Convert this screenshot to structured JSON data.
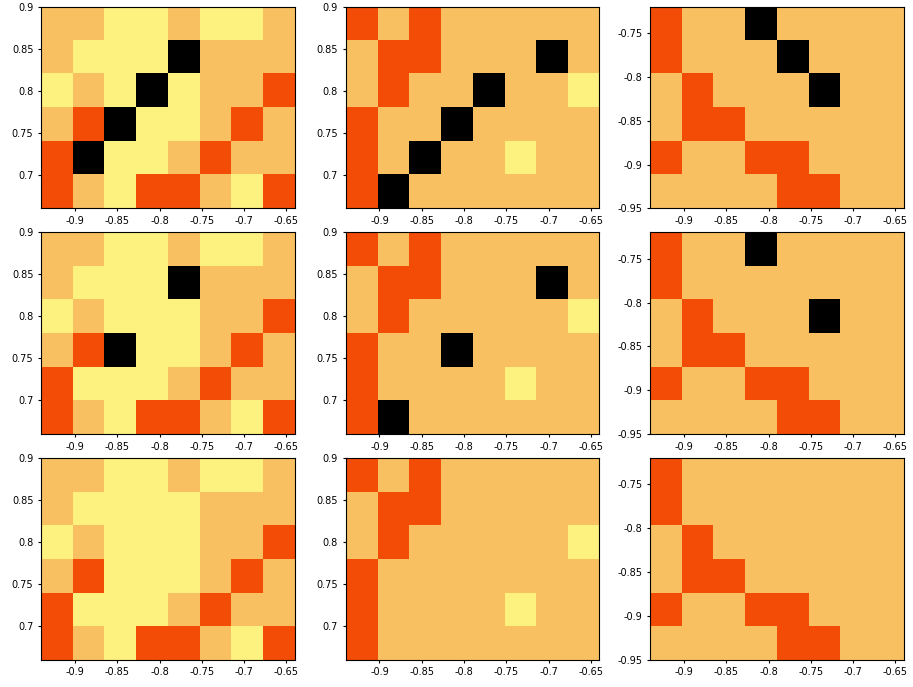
{
  "chart_data": [
    {
      "type": "heatmap",
      "xlim": [
        -0.94,
        -0.64
      ],
      "ylim": [
        0.66,
        0.9
      ],
      "xticks": [
        -0.9,
        -0.85,
        -0.8,
        -0.75,
        -0.7,
        -0.65
      ],
      "yticks": [
        0.7,
        0.75,
        0.8,
        0.85,
        0.9
      ],
      "colors": [
        "#fdf17f",
        "#f8c060",
        "#f24c06",
        "#000000"
      ],
      "cells": [
        [
          1,
          1,
          0,
          0,
          1,
          0,
          0,
          1
        ],
        [
          1,
          0,
          0,
          0,
          3,
          1,
          1,
          1
        ],
        [
          0,
          1,
          0,
          3,
          0,
          1,
          1,
          2
        ],
        [
          1,
          2,
          3,
          0,
          0,
          1,
          2,
          1
        ],
        [
          2,
          3,
          0,
          0,
          1,
          2,
          1,
          1
        ],
        [
          2,
          1,
          0,
          2,
          2,
          1,
          0,
          2
        ]
      ]
    },
    {
      "type": "heatmap",
      "xlim": [
        -0.94,
        -0.64
      ],
      "ylim": [
        0.66,
        0.9
      ],
      "xticks": [
        -0.9,
        -0.85,
        -0.8,
        -0.75,
        -0.7,
        -0.65
      ],
      "yticks": [
        0.7,
        0.75,
        0.8,
        0.85,
        0.9
      ],
      "colors": [
        "#fdf17f",
        "#f8c060",
        "#f24c06",
        "#000000"
      ],
      "cells": [
        [
          2,
          1,
          2,
          1,
          1,
          1,
          1,
          1
        ],
        [
          1,
          2,
          2,
          1,
          1,
          1,
          3,
          1
        ],
        [
          1,
          2,
          1,
          1,
          3,
          1,
          1,
          0
        ],
        [
          2,
          1,
          1,
          3,
          1,
          1,
          1,
          1
        ],
        [
          2,
          1,
          3,
          1,
          1,
          0,
          1,
          1
        ],
        [
          2,
          3,
          1,
          1,
          1,
          1,
          1,
          1
        ]
      ]
    },
    {
      "type": "heatmap",
      "xlim": [
        -0.94,
        -0.64
      ],
      "ylim": [
        -0.95,
        -0.72
      ],
      "xticks": [
        -0.9,
        -0.85,
        -0.8,
        -0.75,
        -0.7,
        -0.65
      ],
      "yticks": [
        -0.95,
        -0.9,
        -0.85,
        -0.8,
        -0.75
      ],
      "colors": [
        "#fdf17f",
        "#f8c060",
        "#f24c06",
        "#000000"
      ],
      "cells": [
        [
          2,
          1,
          1,
          3,
          1,
          1,
          1,
          1
        ],
        [
          2,
          1,
          1,
          1,
          3,
          1,
          1,
          1
        ],
        [
          1,
          2,
          1,
          1,
          1,
          3,
          1,
          1
        ],
        [
          1,
          2,
          2,
          1,
          1,
          1,
          1,
          1
        ],
        [
          2,
          1,
          1,
          2,
          2,
          1,
          1,
          1
        ],
        [
          1,
          1,
          1,
          1,
          2,
          2,
          1,
          1
        ]
      ]
    },
    {
      "type": "heatmap",
      "xlim": [
        -0.94,
        -0.64
      ],
      "ylim": [
        0.66,
        0.9
      ],
      "xticks": [
        -0.9,
        -0.85,
        -0.8,
        -0.75,
        -0.7,
        -0.65
      ],
      "yticks": [
        0.7,
        0.75,
        0.8,
        0.85,
        0.9
      ],
      "colors": [
        "#fdf17f",
        "#f8c060",
        "#f24c06",
        "#000000"
      ],
      "cells": [
        [
          1,
          1,
          0,
          0,
          1,
          0,
          0,
          1
        ],
        [
          1,
          0,
          0,
          0,
          3,
          1,
          1,
          1
        ],
        [
          0,
          1,
          0,
          0,
          0,
          1,
          1,
          2
        ],
        [
          1,
          2,
          3,
          0,
          0,
          1,
          2,
          1
        ],
        [
          2,
          0,
          0,
          0,
          1,
          2,
          1,
          1
        ],
        [
          2,
          1,
          0,
          2,
          2,
          1,
          0,
          2
        ]
      ]
    },
    {
      "type": "heatmap",
      "xlim": [
        -0.94,
        -0.64
      ],
      "ylim": [
        0.66,
        0.9
      ],
      "xticks": [
        -0.9,
        -0.85,
        -0.8,
        -0.75,
        -0.7,
        -0.65
      ],
      "yticks": [
        0.7,
        0.75,
        0.8,
        0.85,
        0.9
      ],
      "colors": [
        "#fdf17f",
        "#f8c060",
        "#f24c06",
        "#000000"
      ],
      "cells": [
        [
          2,
          1,
          2,
          1,
          1,
          1,
          1,
          1
        ],
        [
          1,
          2,
          2,
          1,
          1,
          1,
          3,
          1
        ],
        [
          1,
          2,
          1,
          1,
          1,
          1,
          1,
          0
        ],
        [
          2,
          1,
          1,
          3,
          1,
          1,
          1,
          1
        ],
        [
          2,
          1,
          1,
          1,
          1,
          0,
          1,
          1
        ],
        [
          2,
          3,
          1,
          1,
          1,
          1,
          1,
          1
        ]
      ]
    },
    {
      "type": "heatmap",
      "xlim": [
        -0.94,
        -0.64
      ],
      "ylim": [
        -0.95,
        -0.72
      ],
      "xticks": [
        -0.9,
        -0.85,
        -0.8,
        -0.75,
        -0.7,
        -0.65
      ],
      "yticks": [
        -0.95,
        -0.9,
        -0.85,
        -0.8,
        -0.75
      ],
      "colors": [
        "#fdf17f",
        "#f8c060",
        "#f24c06",
        "#000000"
      ],
      "cells": [
        [
          2,
          1,
          1,
          3,
          1,
          1,
          1,
          1
        ],
        [
          2,
          1,
          1,
          1,
          1,
          1,
          1,
          1
        ],
        [
          1,
          2,
          1,
          1,
          1,
          3,
          1,
          1
        ],
        [
          1,
          2,
          2,
          1,
          1,
          1,
          1,
          1
        ],
        [
          2,
          1,
          1,
          2,
          2,
          1,
          1,
          1
        ],
        [
          1,
          1,
          1,
          1,
          2,
          2,
          1,
          1
        ]
      ]
    },
    {
      "type": "heatmap",
      "xlim": [
        -0.94,
        -0.64
      ],
      "ylim": [
        0.66,
        0.9
      ],
      "xticks": [
        -0.9,
        -0.85,
        -0.8,
        -0.75,
        -0.7,
        -0.65
      ],
      "yticks": [
        0.7,
        0.75,
        0.8,
        0.85,
        0.9
      ],
      "colors": [
        "#fdf17f",
        "#f8c060",
        "#f24c06",
        "#000000"
      ],
      "cells": [
        [
          1,
          1,
          0,
          0,
          1,
          0,
          0,
          1
        ],
        [
          1,
          0,
          0,
          0,
          0,
          1,
          1,
          1
        ],
        [
          0,
          1,
          0,
          0,
          0,
          1,
          1,
          2
        ],
        [
          1,
          2,
          0,
          0,
          0,
          1,
          2,
          1
        ],
        [
          2,
          0,
          0,
          0,
          1,
          2,
          1,
          1
        ],
        [
          2,
          1,
          0,
          2,
          2,
          1,
          0,
          2
        ]
      ]
    },
    {
      "type": "heatmap",
      "xlim": [
        -0.94,
        -0.64
      ],
      "ylim": [
        0.66,
        0.9
      ],
      "xticks": [
        -0.9,
        -0.85,
        -0.8,
        -0.75,
        -0.7,
        -0.65
      ],
      "yticks": [
        0.7,
        0.75,
        0.8,
        0.85,
        0.9
      ],
      "colors": [
        "#fdf17f",
        "#f8c060",
        "#f24c06",
        "#000000"
      ],
      "cells": [
        [
          2,
          1,
          2,
          1,
          1,
          1,
          1,
          1
        ],
        [
          1,
          2,
          2,
          1,
          1,
          1,
          1,
          1
        ],
        [
          1,
          2,
          1,
          1,
          1,
          1,
          1,
          0
        ],
        [
          2,
          1,
          1,
          1,
          1,
          1,
          1,
          1
        ],
        [
          2,
          1,
          1,
          1,
          1,
          0,
          1,
          1
        ],
        [
          2,
          1,
          1,
          1,
          1,
          1,
          1,
          1
        ]
      ]
    },
    {
      "type": "heatmap",
      "xlim": [
        -0.94,
        -0.64
      ],
      "ylim": [
        -0.95,
        -0.72
      ],
      "xticks": [
        -0.9,
        -0.85,
        -0.8,
        -0.75,
        -0.7,
        -0.65
      ],
      "yticks": [
        -0.95,
        -0.9,
        -0.85,
        -0.8,
        -0.75
      ],
      "colors": [
        "#fdf17f",
        "#f8c060",
        "#f24c06",
        "#000000"
      ],
      "cells": [
        [
          2,
          1,
          1,
          1,
          1,
          1,
          1,
          1
        ],
        [
          2,
          1,
          1,
          1,
          1,
          1,
          1,
          1
        ],
        [
          1,
          2,
          1,
          1,
          1,
          1,
          1,
          1
        ],
        [
          1,
          2,
          2,
          1,
          1,
          1,
          1,
          1
        ],
        [
          2,
          1,
          1,
          2,
          2,
          1,
          1,
          1
        ],
        [
          1,
          1,
          1,
          1,
          2,
          2,
          1,
          1
        ]
      ]
    }
  ]
}
